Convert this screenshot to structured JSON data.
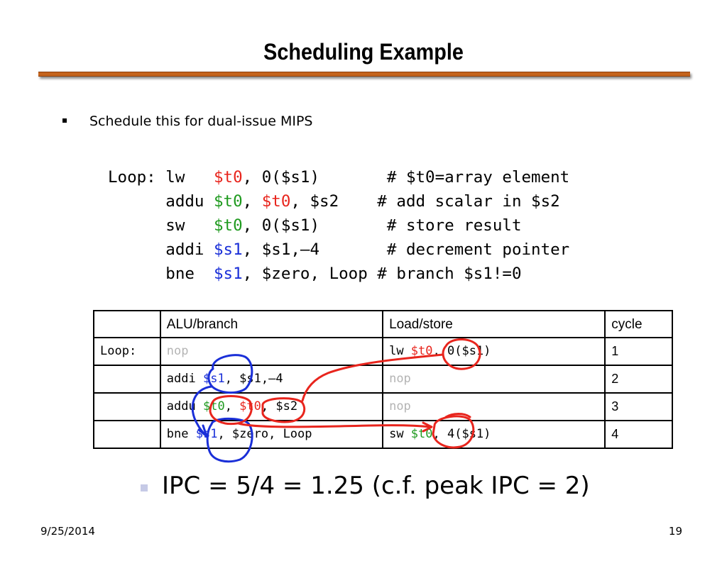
{
  "title": "Scheduling Example",
  "bullet1": "Schedule this for dual-issue MIPS",
  "code": [
    [
      {
        "t": "Loop: lw   ",
        "c": ""
      },
      {
        "t": "$t0",
        "c": "red"
      },
      {
        "t": ", 0($s1)       # $t0=array element",
        "c": ""
      }
    ],
    [
      {
        "t": "      addu ",
        "c": ""
      },
      {
        "t": "$t0",
        "c": "green"
      },
      {
        "t": ", ",
        "c": ""
      },
      {
        "t": "$t0",
        "c": "red"
      },
      {
        "t": ", $s2    # add scalar in $s2",
        "c": ""
      }
    ],
    [
      {
        "t": "      sw   ",
        "c": ""
      },
      {
        "t": "$t0",
        "c": "green"
      },
      {
        "t": ", 0($s1)       # store result",
        "c": ""
      }
    ],
    [
      {
        "t": "      addi ",
        "c": ""
      },
      {
        "t": "$s1",
        "c": "blue"
      },
      {
        "t": ", $s1,–4       # decrement pointer",
        "c": ""
      }
    ],
    [
      {
        "t": "      bne  ",
        "c": ""
      },
      {
        "t": "$s1",
        "c": "blue"
      },
      {
        "t": ", $zero, Loop # branch $s1!=0",
        "c": ""
      }
    ]
  ],
  "table": {
    "headers": [
      "",
      "ALU/branch",
      "Load/store",
      "cycle"
    ],
    "rows": [
      {
        "label": "Loop:",
        "alu": [
          {
            "t": "nop",
            "c": "gray"
          }
        ],
        "ls": [
          {
            "t": "lw   ",
            "c": ""
          },
          {
            "t": "$t0",
            "c": "red"
          },
          {
            "t": ", 0($s1)",
            "c": ""
          }
        ],
        "cycle": "1"
      },
      {
        "label": "",
        "alu": [
          {
            "t": "addi ",
            "c": ""
          },
          {
            "t": "$s1",
            "c": "blue"
          },
          {
            "t": ", $s1,–4",
            "c": ""
          }
        ],
        "ls": [
          {
            "t": "nop",
            "c": "gray"
          }
        ],
        "cycle": "2"
      },
      {
        "label": "",
        "alu": [
          {
            "t": "addu ",
            "c": ""
          },
          {
            "t": "$t0",
            "c": "green"
          },
          {
            "t": ", ",
            "c": ""
          },
          {
            "t": "$t0",
            "c": "red"
          },
          {
            "t": ", $s2",
            "c": ""
          }
        ],
        "ls": [
          {
            "t": "nop",
            "c": "gray"
          }
        ],
        "cycle": "3"
      },
      {
        "label": "",
        "alu": [
          {
            "t": "bne  ",
            "c": ""
          },
          {
            "t": "$s1",
            "c": "blue"
          },
          {
            "t": ", $zero, Loop",
            "c": ""
          }
        ],
        "ls": [
          {
            "t": "sw   ",
            "c": ""
          },
          {
            "t": "$t0",
            "c": "green"
          },
          {
            "t": ", 4($s1)",
            "c": ""
          }
        ],
        "cycle": "4"
      }
    ]
  },
  "bullet2": "IPC = 5/4 = 1.25 (c.f. peak IPC = 2)",
  "footer": {
    "date": "9/25/2014",
    "page": "19"
  },
  "colors": {
    "rule": "#c4631c",
    "red": "#e8251d",
    "green": "#1f9a1f",
    "blue": "#1a2fd8",
    "nop_gray": "#b4b4b4",
    "bullet2_marker": "#c6cae6"
  }
}
